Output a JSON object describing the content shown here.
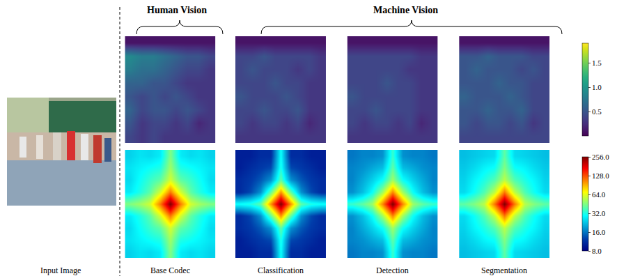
{
  "figure": {
    "input_label": "Input Image",
    "groups": [
      {
        "label": "Human Vision",
        "columns": [
          "Base Codec"
        ]
      },
      {
        "label": "Machine Vision",
        "columns": [
          "Classification",
          "Detection",
          "Segmentation"
        ]
      }
    ]
  },
  "chart_data": [
    {
      "type": "heatmap",
      "color": "Viridis",
      "tick_labels": false,
      "colorbar_range": [
        0,
        1.9
      ],
      "colorbar_ticks": [
        {
          "value": 0.5,
          "label": "0.5"
        },
        {
          "value": 1,
          "label": "1.0"
        },
        {
          "value": 1.5,
          "label": "1.5"
        }
      ],
      "series": [
        {
          "values": [
            [
              0.1,
              0.1,
              0.1,
              0.1,
              0.1,
              0.1,
              0.1,
              0.1
            ],
            [
              0.9,
              0.8,
              0.8,
              0.7,
              0.6,
              0.5,
              0.5,
              0.4
            ],
            [
              0.8,
              0.7,
              0.7,
              0.6,
              0.5,
              0.4,
              0.4,
              0.3
            ],
            [
              0.6,
              0.6,
              0.5,
              0.5,
              0.4,
              0.3,
              0.3,
              0.3
            ],
            [
              0.5,
              0.4,
              0.5,
              0.4,
              0.5,
              0.4,
              0.3,
              0.3
            ],
            [
              0.6,
              0.4,
              0.5,
              0.5,
              0.4,
              0.5,
              0.4,
              0.3
            ],
            [
              0.5,
              0.3,
              0.4,
              0.4,
              0.3,
              0.4,
              0.2,
              0.3
            ],
            [
              0.4,
              0.3,
              0.4,
              0.3,
              0.3,
              0.3,
              0.3,
              0.3
            ]
          ]
        },
        {
          "values": [
            [
              0.1,
              0.1,
              0.1,
              0.1,
              0.1,
              0.1,
              0.1,
              0.1
            ],
            [
              0.4,
              0.4,
              0.5,
              0.4,
              0.4,
              0.4,
              0.4,
              0.3
            ],
            [
              0.4,
              0.5,
              0.4,
              0.4,
              0.4,
              0.3,
              0.4,
              0.3
            ],
            [
              0.4,
              0.4,
              0.4,
              0.5,
              0.4,
              0.4,
              0.3,
              0.3
            ],
            [
              0.5,
              0.4,
              0.4,
              0.4,
              0.5,
              0.4,
              0.3,
              0.3
            ],
            [
              0.4,
              0.4,
              0.5,
              0.4,
              0.4,
              0.5,
              0.3,
              0.3
            ],
            [
              0.4,
              0.3,
              0.4,
              0.4,
              0.3,
              0.4,
              0.2,
              0.3
            ],
            [
              0.3,
              0.3,
              0.3,
              0.3,
              0.3,
              0.3,
              0.3,
              0.3
            ]
          ]
        },
        {
          "values": [
            [
              0.1,
              0.1,
              0.1,
              0.1,
              0.1,
              0.1,
              0.1,
              0.1
            ],
            [
              0.4,
              0.4,
              0.4,
              0.4,
              0.4,
              0.4,
              0.3,
              0.3
            ],
            [
              0.4,
              0.4,
              0.4,
              0.4,
              0.4,
              0.3,
              0.3,
              0.3
            ],
            [
              0.4,
              0.4,
              0.4,
              0.5,
              0.4,
              0.4,
              0.3,
              0.3
            ],
            [
              0.5,
              0.4,
              0.4,
              0.4,
              0.4,
              0.4,
              0.3,
              0.3
            ],
            [
              0.4,
              0.4,
              0.5,
              0.4,
              0.4,
              0.4,
              0.3,
              0.3
            ],
            [
              0.4,
              0.3,
              0.4,
              0.4,
              0.3,
              0.4,
              0.2,
              0.3
            ],
            [
              0.3,
              0.3,
              0.3,
              0.3,
              0.3,
              0.3,
              0.3,
              0.3
            ]
          ]
        },
        {
          "values": [
            [
              0.1,
              0.1,
              0.1,
              0.1,
              0.1,
              0.1,
              0.1,
              0.1
            ],
            [
              0.5,
              0.5,
              0.6,
              0.5,
              0.5,
              0.5,
              0.4,
              0.4
            ],
            [
              0.5,
              0.6,
              0.5,
              0.5,
              0.5,
              0.4,
              0.5,
              0.4
            ],
            [
              0.5,
              0.5,
              0.5,
              0.6,
              0.5,
              0.5,
              0.4,
              0.4
            ],
            [
              0.6,
              0.5,
              0.5,
              0.5,
              0.6,
              0.5,
              0.4,
              0.4
            ],
            [
              0.5,
              0.5,
              0.6,
              0.5,
              0.5,
              0.6,
              0.4,
              0.4
            ],
            [
              0.5,
              0.4,
              0.5,
              0.5,
              0.4,
              0.5,
              0.3,
              0.4
            ],
            [
              0.4,
              0.4,
              0.4,
              0.4,
              0.4,
              0.4,
              0.4,
              0.4
            ]
          ]
        }
      ]
    },
    {
      "type": "heatmap",
      "color": "Jet",
      "log": true,
      "tick_labels": false,
      "colorbar_range": [
        8,
        256
      ],
      "colorbar_ticks": [
        {
          "value": 8,
          "label": "8.0"
        },
        {
          "value": 16,
          "label": "16.0"
        },
        {
          "value": 32,
          "label": "32.0"
        },
        {
          "value": 64,
          "label": "64.0"
        },
        {
          "value": 128,
          "label": "128.0"
        },
        {
          "value": 256,
          "label": "256.0"
        }
      ],
      "series": [
        {
          "values": [
            [
              24,
              26,
              25,
              27,
              45,
              27,
              25,
              26,
              24
            ],
            [
              26,
              28,
              30,
              32,
              50,
              32,
              30,
              28,
              26
            ],
            [
              25,
              30,
              35,
              40,
              60,
              40,
              35,
              30,
              25
            ],
            [
              27,
              32,
              40,
              60,
              110,
              60,
              40,
              32,
              27
            ],
            [
              45,
              50,
              60,
              110,
              256,
              110,
              60,
              50,
              45
            ],
            [
              27,
              32,
              40,
              60,
              110,
              60,
              40,
              32,
              27
            ],
            [
              25,
              30,
              35,
              40,
              60,
              40,
              35,
              30,
              25
            ],
            [
              26,
              28,
              30,
              32,
              50,
              32,
              30,
              28,
              26
            ],
            [
              24,
              26,
              25,
              27,
              45,
              27,
              25,
              26,
              24
            ]
          ]
        },
        {
          "values": [
            [
              10,
              10,
              11,
              11,
              30,
              11,
              11,
              10,
              10
            ],
            [
              10,
              11,
              12,
              13,
              32,
              13,
              12,
              11,
              10
            ],
            [
              11,
              12,
              14,
              18,
              40,
              18,
              14,
              12,
              11
            ],
            [
              11,
              13,
              18,
              40,
              100,
              40,
              18,
              13,
              11
            ],
            [
              30,
              32,
              40,
              100,
              256,
              100,
              40,
              32,
              30
            ],
            [
              11,
              13,
              18,
              40,
              100,
              40,
              18,
              13,
              11
            ],
            [
              11,
              12,
              14,
              18,
              40,
              18,
              14,
              12,
              11
            ],
            [
              10,
              11,
              12,
              13,
              32,
              13,
              12,
              11,
              10
            ],
            [
              10,
              10,
              11,
              11,
              30,
              11,
              11,
              10,
              10
            ]
          ]
        },
        {
          "values": [
            [
              16,
              17,
              17,
              18,
              35,
              18,
              17,
              17,
              16
            ],
            [
              17,
              18,
              20,
              22,
              40,
              22,
              20,
              18,
              17
            ],
            [
              17,
              20,
              24,
              30,
              50,
              30,
              24,
              20,
              17
            ],
            [
              18,
              22,
              30,
              50,
              105,
              50,
              30,
              22,
              18
            ],
            [
              35,
              40,
              50,
              105,
              256,
              105,
              50,
              40,
              35
            ],
            [
              18,
              22,
              30,
              50,
              105,
              50,
              30,
              22,
              18
            ],
            [
              17,
              20,
              24,
              30,
              50,
              30,
              24,
              20,
              17
            ],
            [
              17,
              18,
              20,
              22,
              40,
              22,
              20,
              18,
              17
            ],
            [
              16,
              17,
              17,
              18,
              35,
              18,
              17,
              17,
              16
            ]
          ]
        },
        {
          "values": [
            [
              22,
              23,
              24,
              25,
              40,
              25,
              24,
              23,
              22
            ],
            [
              23,
              25,
              28,
              30,
              45,
              30,
              28,
              25,
              23
            ],
            [
              24,
              28,
              32,
              38,
              55,
              38,
              32,
              28,
              24
            ],
            [
              25,
              30,
              38,
              55,
              110,
              55,
              38,
              30,
              25
            ],
            [
              40,
              45,
              55,
              110,
              256,
              110,
              55,
              45,
              40
            ],
            [
              25,
              30,
              38,
              55,
              110,
              55,
              38,
              30,
              25
            ],
            [
              24,
              28,
              32,
              38,
              55,
              38,
              32,
              28,
              24
            ],
            [
              23,
              25,
              28,
              30,
              45,
              30,
              28,
              25,
              23
            ],
            [
              22,
              23,
              24,
              25,
              40,
              25,
              24,
              23,
              22
            ]
          ]
        }
      ]
    }
  ]
}
